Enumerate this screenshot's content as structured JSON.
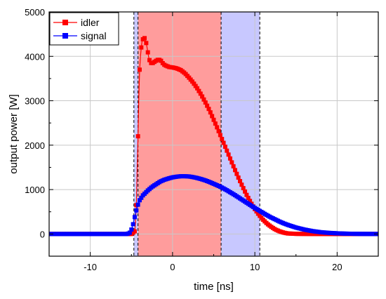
{
  "chart_data": {
    "type": "line",
    "xlabel": "time [ns]",
    "ylabel": "output power [W]",
    "xlim": [
      -15,
      25
    ],
    "ylim": [
      -500,
      5000
    ],
    "x_ticks": [
      -10,
      0,
      10,
      20
    ],
    "y_ticks": [
      0,
      1000,
      2000,
      3000,
      4000,
      5000
    ],
    "grid": true,
    "legend": "top-left",
    "shaded_regions": [
      {
        "x0": -4.7,
        "x1": -4.2,
        "color": "#c8c8ff"
      },
      {
        "x0": -4.2,
        "x1": 5.9,
        "color": "#ff9c9c"
      },
      {
        "x0": 5.9,
        "x1": 10.6,
        "color": "#c8c8ff"
      }
    ],
    "vlines": [
      -4.7,
      -4.2,
      5.9,
      10.6
    ],
    "series": [
      {
        "name": "idler",
        "color": "#ff0000",
        "marker": "square",
        "points": [
          [
            -15,
            0
          ],
          [
            -10,
            0
          ],
          [
            -5.5,
            0
          ],
          [
            -5.0,
            0
          ],
          [
            -4.6,
            60
          ],
          [
            -4.5,
            250
          ],
          [
            -4.4,
            650
          ],
          [
            -4.3,
            1500
          ],
          [
            -4.2,
            2200
          ],
          [
            -4.1,
            3100
          ],
          [
            -4.0,
            3700
          ],
          [
            -3.9,
            4000
          ],
          [
            -3.8,
            4200
          ],
          [
            -3.7,
            4350
          ],
          [
            -3.5,
            4420
          ],
          [
            -3.3,
            4400
          ],
          [
            -3.1,
            4200
          ],
          [
            -2.9,
            3980
          ],
          [
            -2.7,
            3850
          ],
          [
            -2.4,
            3850
          ],
          [
            -2.0,
            3900
          ],
          [
            -1.7,
            3930
          ],
          [
            -1.4,
            3900
          ],
          [
            -1.1,
            3820
          ],
          [
            -0.8,
            3790
          ],
          [
            -0.4,
            3760
          ],
          [
            0,
            3750
          ],
          [
            0.5,
            3730
          ],
          [
            1.0,
            3690
          ],
          [
            1.5,
            3620
          ],
          [
            2.0,
            3520
          ],
          [
            2.5,
            3410
          ],
          [
            3.0,
            3280
          ],
          [
            3.5,
            3130
          ],
          [
            4.0,
            2960
          ],
          [
            4.5,
            2780
          ],
          [
            5.0,
            2570
          ],
          [
            5.5,
            2360
          ],
          [
            6.0,
            2140
          ],
          [
            6.5,
            1920
          ],
          [
            7.0,
            1700
          ],
          [
            7.5,
            1480
          ],
          [
            8.0,
            1270
          ],
          [
            8.5,
            1070
          ],
          [
            9.0,
            880
          ],
          [
            9.5,
            710
          ],
          [
            10.0,
            560
          ],
          [
            10.5,
            430
          ],
          [
            11.0,
            320
          ],
          [
            11.5,
            230
          ],
          [
            12.0,
            160
          ],
          [
            12.5,
            100
          ],
          [
            13.0,
            60
          ],
          [
            13.5,
            30
          ],
          [
            14.0,
            12
          ],
          [
            15.0,
            3
          ],
          [
            17,
            0
          ],
          [
            20,
            0
          ],
          [
            25,
            0
          ]
        ]
      },
      {
        "name": "signal",
        "color": "#0000ff",
        "marker": "square",
        "points": [
          [
            -15,
            0
          ],
          [
            -10,
            0
          ],
          [
            -6,
            0
          ],
          [
            -5.5,
            0
          ],
          [
            -5.2,
            30
          ],
          [
            -5.0,
            100
          ],
          [
            -4.8,
            220
          ],
          [
            -4.6,
            380
          ],
          [
            -4.4,
            530
          ],
          [
            -4.2,
            660
          ],
          [
            -4.0,
            760
          ],
          [
            -3.6,
            870
          ],
          [
            -3.0,
            980
          ],
          [
            -2.5,
            1060
          ],
          [
            -2.0,
            1120
          ],
          [
            -1.5,
            1180
          ],
          [
            -1.0,
            1220
          ],
          [
            -0.5,
            1250
          ],
          [
            0,
            1275
          ],
          [
            0.5,
            1290
          ],
          [
            1.0,
            1300
          ],
          [
            1.5,
            1300
          ],
          [
            2.0,
            1295
          ],
          [
            2.5,
            1280
          ],
          [
            3.0,
            1260
          ],
          [
            3.5,
            1235
          ],
          [
            4.0,
            1205
          ],
          [
            4.5,
            1170
          ],
          [
            5.0,
            1130
          ],
          [
            5.5,
            1090
          ],
          [
            6.0,
            1045
          ],
          [
            6.5,
            995
          ],
          [
            7.0,
            940
          ],
          [
            7.5,
            885
          ],
          [
            8.0,
            825
          ],
          [
            8.5,
            765
          ],
          [
            9.0,
            705
          ],
          [
            9.5,
            645
          ],
          [
            10.0,
            585
          ],
          [
            10.5,
            530
          ],
          [
            11.0,
            475
          ],
          [
            11.5,
            420
          ],
          [
            12.0,
            370
          ],
          [
            12.5,
            325
          ],
          [
            13.0,
            280
          ],
          [
            13.5,
            240
          ],
          [
            14.0,
            205
          ],
          [
            15.0,
            145
          ],
          [
            16.0,
            100
          ],
          [
            17.0,
            65
          ],
          [
            18.0,
            40
          ],
          [
            19.0,
            25
          ],
          [
            20.0,
            15
          ],
          [
            21.0,
            8
          ],
          [
            22.0,
            4
          ],
          [
            23.0,
            2
          ],
          [
            25.0,
            0
          ]
        ]
      }
    ]
  }
}
